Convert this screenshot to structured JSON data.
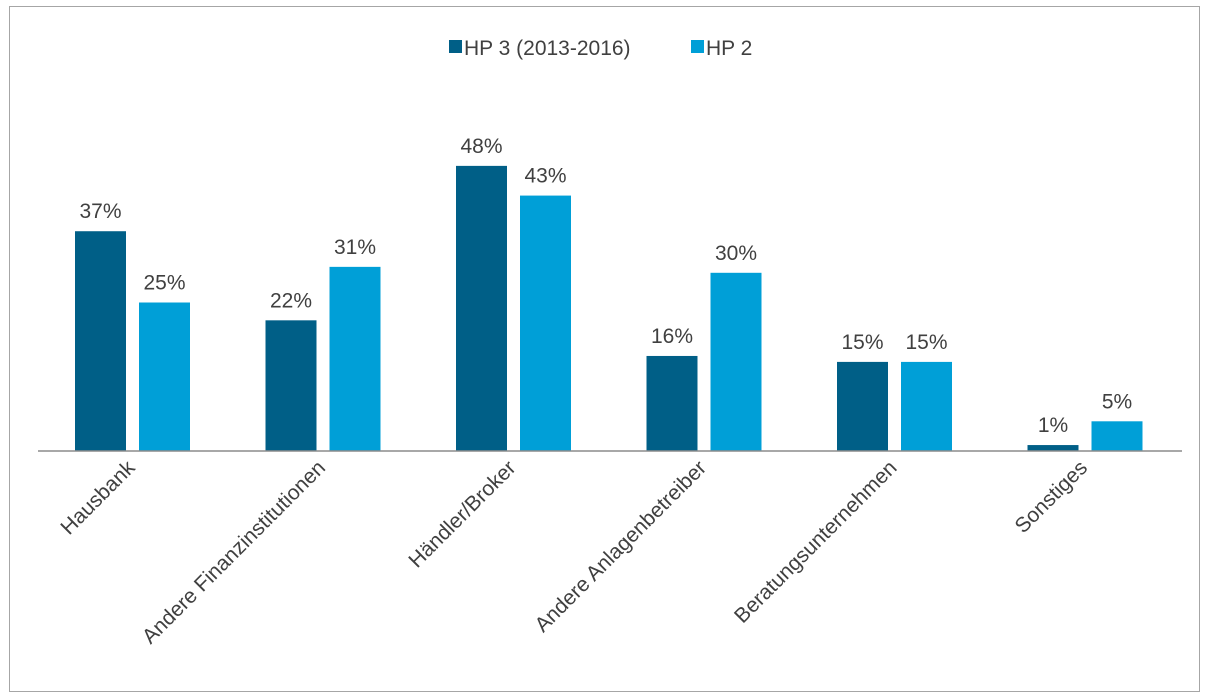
{
  "chart_data": {
    "type": "bar",
    "title": "",
    "xlabel": "",
    "ylabel": "",
    "ylim": [
      0,
      50
    ],
    "grid": false,
    "legend_position": "top-center",
    "categories": [
      "Hausbank",
      "Andere Finanzinstitutionen",
      "Händler/Broker",
      "Andere Anlagenbetreiber",
      "Beratungsunternehmen",
      "Sonstiges"
    ],
    "series": [
      {
        "name": "HP 3 (2013-2016)",
        "color": "#005f87",
        "values": [
          37,
          22,
          48,
          16,
          15,
          1
        ],
        "labels": [
          "37%",
          "22%",
          "48%",
          "16%",
          "15%",
          "1%"
        ]
      },
      {
        "name": "HP 2",
        "color": "#009fd7",
        "values": [
          25,
          31,
          43,
          30,
          15,
          5
        ],
        "labels": [
          "25%",
          "31%",
          "43%",
          "30%",
          "15%",
          "5%"
        ]
      }
    ]
  }
}
